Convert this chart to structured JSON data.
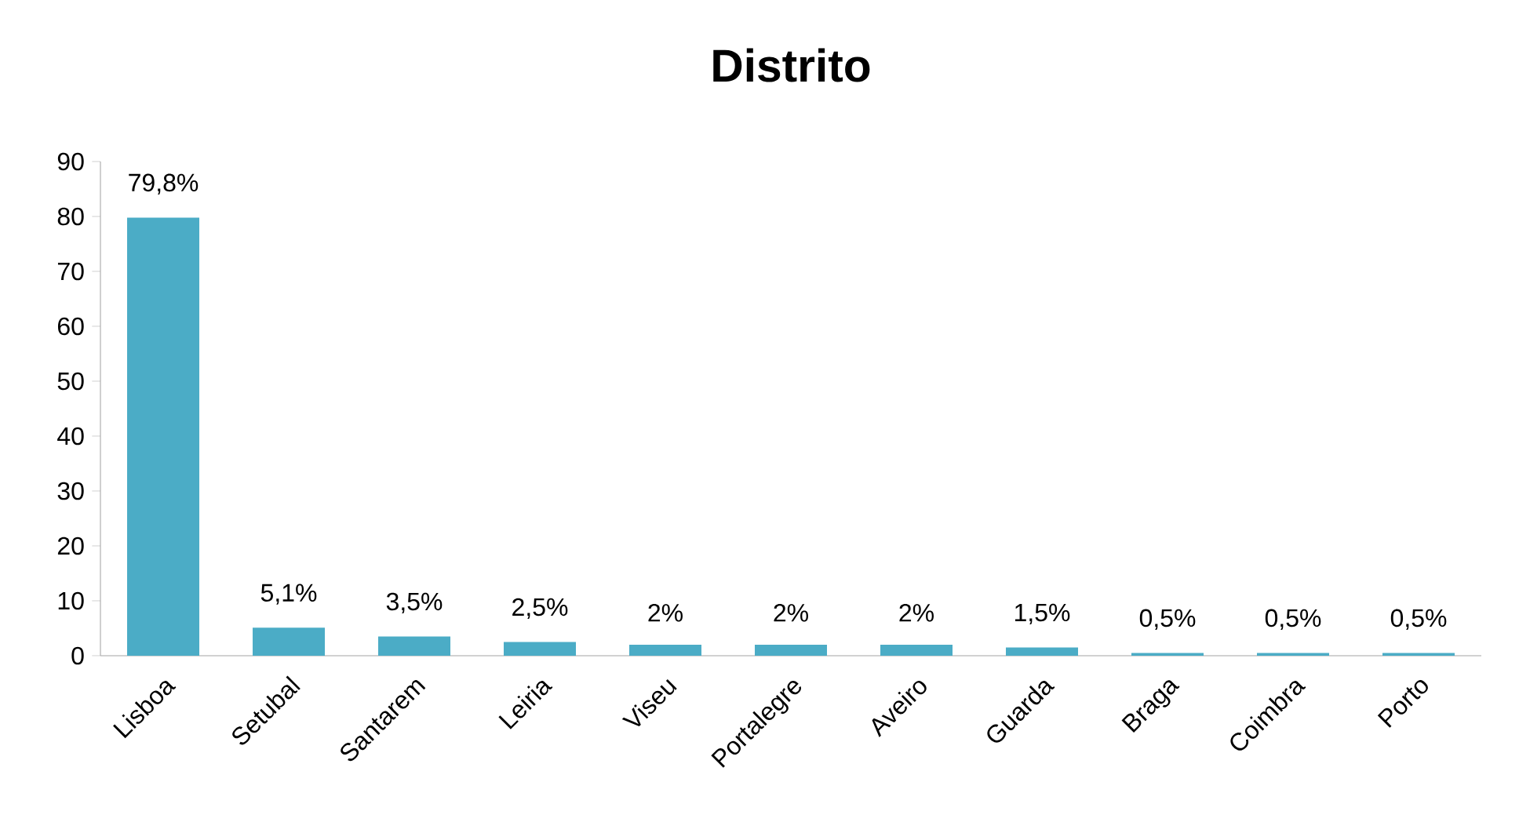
{
  "chart_data": {
    "type": "bar",
    "title": "Distrito",
    "categories": [
      "Lisboa",
      "Setubal",
      "Santarem",
      "Leiria",
      "Viseu",
      "Portalegre",
      "Aveiro",
      "Guarda",
      "Braga",
      "Coimbra",
      "Porto"
    ],
    "values": [
      79.8,
      5.1,
      3.5,
      2.5,
      2,
      2,
      2,
      1.5,
      0.5,
      0.5,
      0.5
    ],
    "value_labels": [
      "79,8%",
      "5,1%",
      "3,5%",
      "2,5%",
      "2%",
      "2%",
      "2%",
      "1,5%",
      "0,5%",
      "0,5%",
      "0,5%"
    ],
    "color": "#4bacc6",
    "ylim": [
      0,
      90
    ],
    "yticks": [
      0,
      10,
      20,
      30,
      40,
      50,
      60,
      70,
      80,
      90
    ]
  }
}
